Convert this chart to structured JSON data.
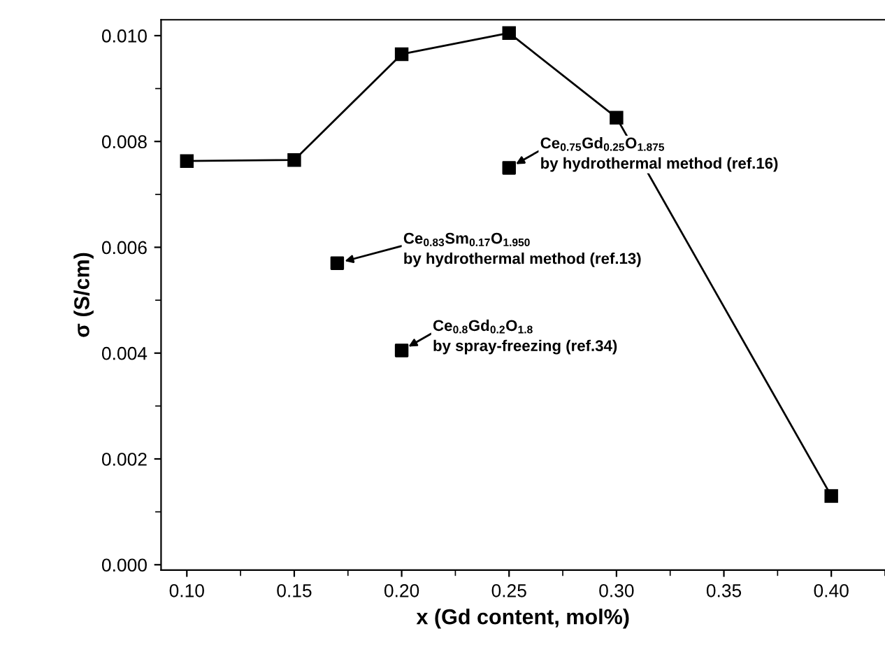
{
  "chart_data": {
    "type": "line",
    "xlabel": "x (Gd content, mol%)",
    "ylabel": "σ (S/cm)",
    "xlim": [
      0.088,
      0.425
    ],
    "ylim": [
      -0.0001,
      0.0103
    ],
    "xticks": [
      {
        "value": 0.1,
        "label": "0.10"
      },
      {
        "value": 0.15,
        "label": "0.15"
      },
      {
        "value": 0.2,
        "label": "0.20"
      },
      {
        "value": 0.25,
        "label": "0.25"
      },
      {
        "value": 0.3,
        "label": "0.30"
      },
      {
        "value": 0.35,
        "label": "0.35"
      },
      {
        "value": 0.4,
        "label": "0.40"
      }
    ],
    "yticks": [
      {
        "value": 0.0,
        "label": "0.000"
      },
      {
        "value": 0.002,
        "label": "0.002"
      },
      {
        "value": 0.004,
        "label": "0.004"
      },
      {
        "value": 0.006,
        "label": "0.006"
      },
      {
        "value": 0.008,
        "label": "0.008"
      },
      {
        "value": 0.01,
        "label": "0.010"
      }
    ],
    "marker": "square",
    "grid": false,
    "legend": false,
    "series": [
      {
        "color": "#000000",
        "x": [
          0.1,
          0.15,
          0.2,
          0.25,
          0.3,
          0.4
        ],
        "values": [
          0.00763,
          0.00765,
          0.00965,
          0.01005,
          0.00845,
          0.0013
        ]
      },
      {
        "type": "scatter",
        "color": "#000000",
        "x": [
          0.25,
          0.17,
          0.2
        ],
        "values": [
          0.0075,
          0.0057,
          0.00405
        ]
      }
    ],
    "annotations": [
      {
        "text": "Ce$_{0.75}$Gd$_{0.25}$O$_{1.875}$\nby hydrothermal method (ref.16)",
        "x": 0.25,
        "y": 0.0075
      },
      {
        "text": "Ce$_{0.83}$Sm$_{0.17}$O$_{1.950}$\nby hydrothermal method (ref.13)",
        "x": 0.17,
        "y": 0.0057
      },
      {
        "text": "Ce$_{0.8}$Gd$_{0.2}$O$_{1.8}$\nby spray-freezing (ref.34)",
        "x": 0.2,
        "y": 0.00405
      }
    ]
  }
}
